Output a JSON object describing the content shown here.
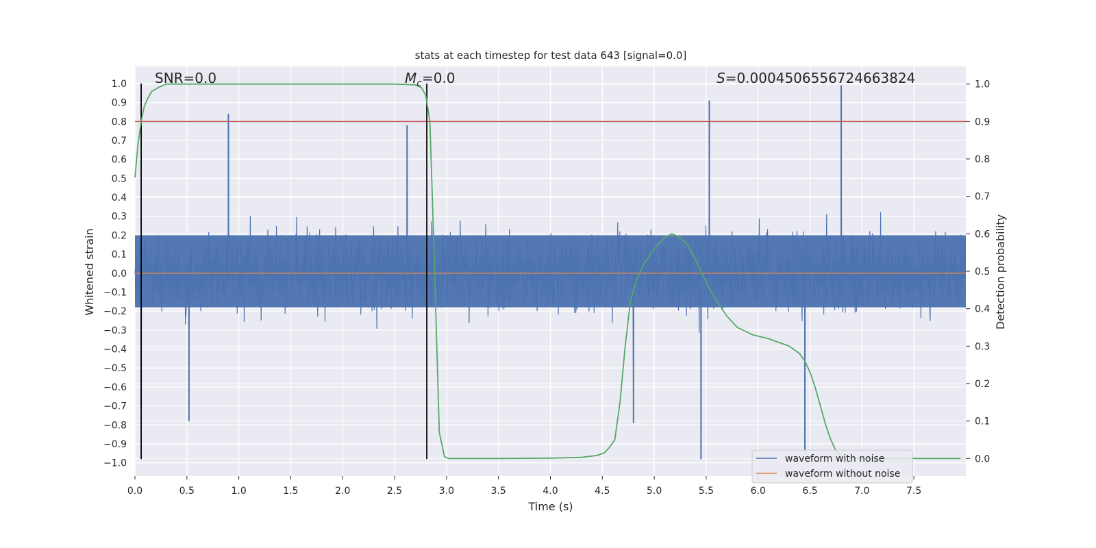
{
  "chart_data": {
    "type": "line",
    "title": "stats at each timestep for test data 643 [signal=0.0]",
    "xlabel": "Time (s)",
    "ylabel": "Whitened strain",
    "y2label": "Detection probability",
    "xlim": [
      0.0,
      8.0
    ],
    "ylim": [
      -1.07,
      1.09
    ],
    "y2lim": [
      -0.047,
      1.047
    ],
    "x_ticks": [
      0.0,
      0.5,
      1.0,
      1.5,
      2.0,
      2.5,
      3.0,
      3.5,
      4.0,
      4.5,
      5.0,
      5.5,
      6.0,
      6.5,
      7.0,
      7.5
    ],
    "x_tick_labels": [
      "0.0",
      "0.5",
      "1.0",
      "1.5",
      "2.0",
      "2.5",
      "3.0",
      "3.5",
      "4.0",
      "4.5",
      "5.0",
      "5.5",
      "6.0",
      "6.5",
      "7.0",
      "7.5"
    ],
    "y_ticks": [
      -1.0,
      -0.9,
      -0.8,
      -0.7,
      -0.6,
      -0.5,
      -0.4,
      -0.3,
      -0.2,
      -0.1,
      0.0,
      0.1,
      0.2,
      0.3,
      0.4,
      0.5,
      0.6,
      0.7,
      0.8,
      0.9,
      1.0
    ],
    "y_tick_labels": [
      "−1.0",
      "−0.9",
      "−0.8",
      "−0.7",
      "−0.6",
      "−0.5",
      "−0.4",
      "−0.3",
      "−0.2",
      "−0.1",
      "0.0",
      "0.1",
      "0.2",
      "0.3",
      "0.4",
      "0.5",
      "0.6",
      "0.7",
      "0.8",
      "0.9",
      "1.0"
    ],
    "y2_ticks": [
      0.0,
      0.1,
      0.2,
      0.3,
      0.4,
      0.5,
      0.6,
      0.7,
      0.8,
      0.9,
      1.0
    ],
    "y2_tick_labels": [
      "0.0",
      "0.1",
      "0.2",
      "0.3",
      "0.4",
      "0.5",
      "0.6",
      "0.7",
      "0.8",
      "0.9",
      "1.0"
    ],
    "grid": true,
    "legend_position": "bottom-right",
    "annotations": {
      "snr": "SNR=0.0",
      "mc": "M",
      "mc_sub": "c",
      "mc_value": "=0.0",
      "s": "S",
      "s_value": "=0.0004506556724663824"
    },
    "threshold_y2": 0.9,
    "vertical_lines_x": [
      0.06,
      2.81
    ],
    "vertical_lines_y": [
      -0.98,
      1.0
    ],
    "series": [
      {
        "name": "waveform with noise",
        "color": "#4c72b0",
        "kind": "noise",
        "seed": 643,
        "base_amplitude": 0.2,
        "max_abs": 0.98,
        "peaks": [
          {
            "x": 0.06,
            "y": -0.71
          },
          {
            "x": 0.52,
            "y": -0.78
          },
          {
            "x": 0.9,
            "y": 0.84
          },
          {
            "x": 2.62,
            "y": 0.78
          },
          {
            "x": 4.8,
            "y": -0.79
          },
          {
            "x": 5.45,
            "y": -0.98
          },
          {
            "x": 5.53,
            "y": 0.91
          },
          {
            "x": 6.45,
            "y": -0.94
          },
          {
            "x": 6.8,
            "y": 0.99
          }
        ]
      },
      {
        "name": "waveform without noise",
        "color": "#dd8452",
        "kind": "flat",
        "value": 0.0
      },
      {
        "name": "detection probability",
        "color": "#55a868",
        "axis": "y2",
        "x": [
          0.0,
          0.03,
          0.06,
          0.09,
          0.12,
          0.16,
          0.22,
          0.3,
          0.5,
          1.0,
          2.0,
          2.5,
          2.7,
          2.76,
          2.8,
          2.84,
          2.88,
          2.93,
          2.98,
          3.02,
          3.1,
          3.5,
          4.0,
          4.3,
          4.45,
          4.52,
          4.57,
          4.62,
          4.67,
          4.72,
          4.77,
          4.82,
          4.9,
          5.0,
          5.1,
          5.17,
          5.25,
          5.32,
          5.4,
          5.5,
          5.6,
          5.7,
          5.8,
          5.95,
          6.1,
          6.2,
          6.3,
          6.4,
          6.45,
          6.5,
          6.55,
          6.6,
          6.65,
          6.7,
          6.75,
          6.8,
          6.9,
          7.0,
          7.5,
          7.95
        ],
        "y": [
          0.75,
          0.84,
          0.9,
          0.94,
          0.96,
          0.98,
          0.99,
          1.0,
          1.0,
          1.0,
          1.0,
          1.0,
          0.998,
          0.99,
          0.97,
          0.9,
          0.55,
          0.07,
          0.005,
          0.0,
          0.0,
          0.0,
          0.001,
          0.003,
          0.008,
          0.015,
          0.03,
          0.05,
          0.15,
          0.3,
          0.42,
          0.47,
          0.52,
          0.56,
          0.59,
          0.6,
          0.59,
          0.57,
          0.53,
          0.47,
          0.42,
          0.38,
          0.35,
          0.33,
          0.32,
          0.31,
          0.3,
          0.28,
          0.26,
          0.23,
          0.19,
          0.14,
          0.09,
          0.05,
          0.02,
          0.005,
          0.0,
          0.0,
          0.0,
          0.0
        ]
      }
    ]
  }
}
